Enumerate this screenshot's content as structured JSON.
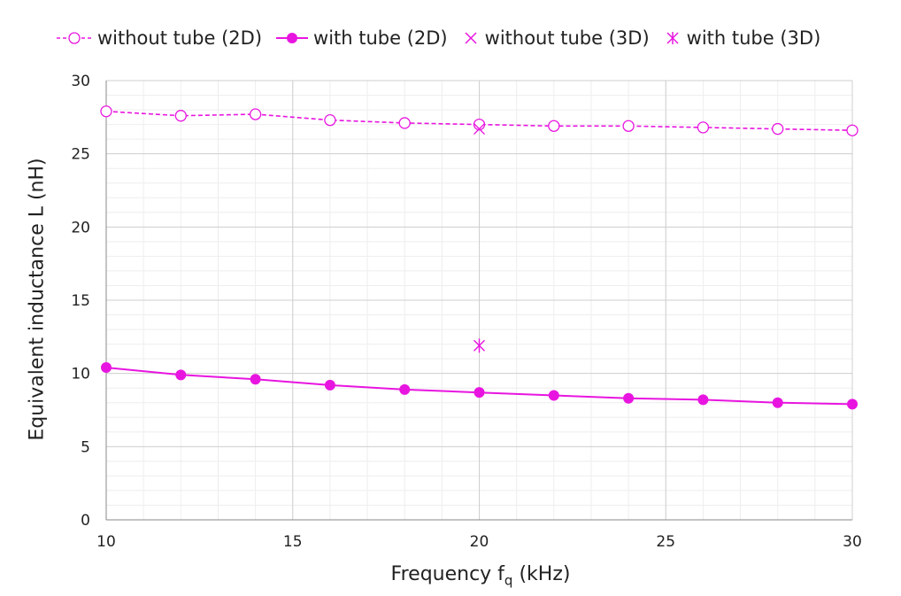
{
  "chart_data": {
    "type": "line",
    "xlabel": "Frequency f",
    "xlabel_sub": "q",
    "xlabel_unit": " (kHz)",
    "ylabel": "Equivalent inductance L (nH)",
    "xlim": [
      10,
      30
    ],
    "ylim": [
      0,
      30
    ],
    "x_ticks": [
      10,
      15,
      20,
      25,
      30
    ],
    "y_ticks": [
      0,
      5,
      10,
      15,
      20,
      25,
      30
    ],
    "grid": true,
    "legend_position": "top",
    "series": [
      {
        "name": "without tube (2D)",
        "style": "dashed-open-circle",
        "color": "#e815e0",
        "x": [
          10,
          12,
          14,
          16,
          18,
          20,
          22,
          24,
          26,
          28,
          30
        ],
        "y": [
          27.9,
          27.6,
          27.7,
          27.3,
          27.1,
          27.0,
          26.9,
          26.9,
          26.8,
          26.7,
          26.6
        ]
      },
      {
        "name": "with tube (2D)",
        "style": "solid-filled-circle",
        "color": "#e815e0",
        "x": [
          10,
          12,
          14,
          16,
          18,
          20,
          22,
          24,
          26,
          28,
          30
        ],
        "y": [
          10.4,
          9.9,
          9.6,
          9.2,
          8.9,
          8.7,
          8.5,
          8.3,
          8.2,
          8.0,
          7.9
        ]
      },
      {
        "name": "without tube (3D)",
        "style": "x-marker",
        "color": "#e815e0",
        "x": [
          20
        ],
        "y": [
          26.7
        ]
      },
      {
        "name": "with tube (3D)",
        "style": "asterisk-marker",
        "color": "#e815e0",
        "x": [
          20
        ],
        "y": [
          11.9
        ]
      }
    ]
  }
}
